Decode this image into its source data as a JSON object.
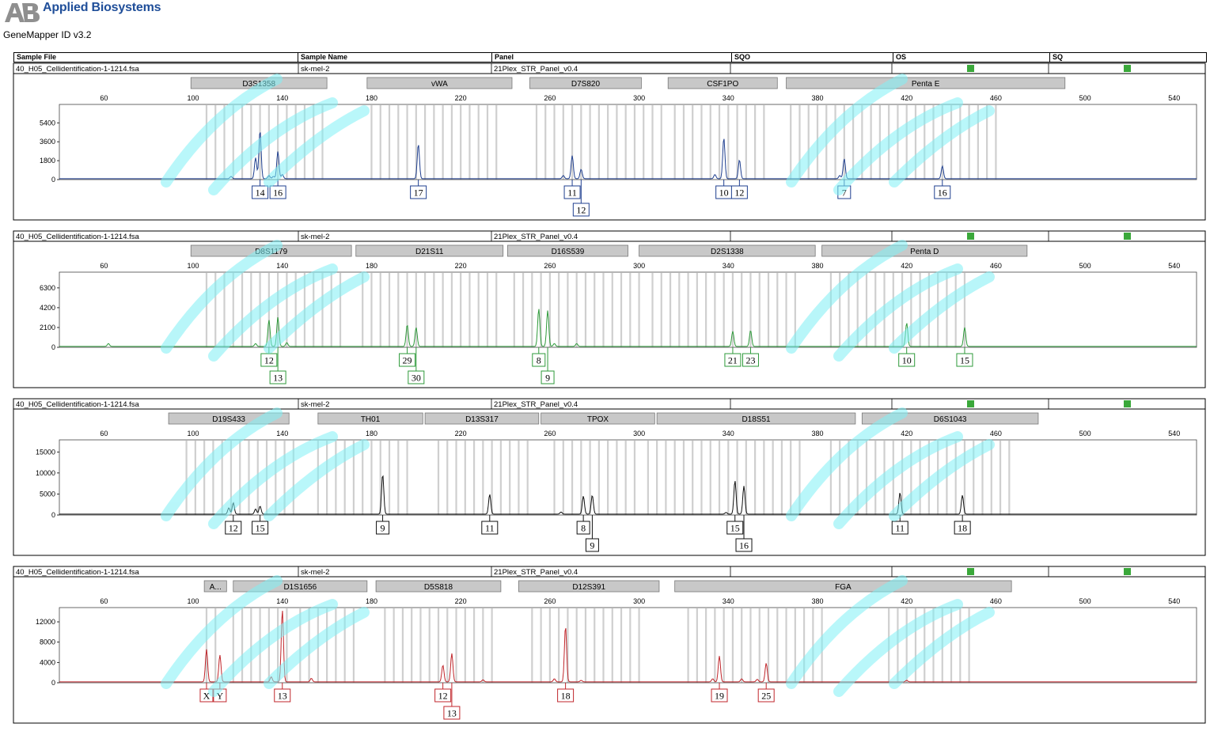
{
  "app": {
    "company": "Applied Biosystems",
    "product": "GeneMapper ID v3.2"
  },
  "table_header": {
    "columns": [
      "Sample File",
      "Sample Name",
      "Panel",
      "SQO",
      "OS",
      "SQ"
    ]
  },
  "colors": {
    "dye_blue": "#1f3f8f",
    "dye_green": "#2e9a3a",
    "dye_black": "#111111",
    "dye_red": "#c0262b",
    "status_green": "#3aa83a",
    "bin_gray": "#cfcfcf",
    "marker_fill": "#c8c8c8",
    "watermark": "#7ff0f5"
  },
  "chart_data": [
    {
      "type": "line",
      "sample_file": "40_H05_Cellidentification-1-1214.fsa",
      "sample_name": "sk-mel-2",
      "panel": "21Plex_STR_Panel_v0.4",
      "dye": "blue",
      "xlim": [
        40,
        550
      ],
      "x_ticks": [
        60,
        100,
        140,
        180,
        220,
        260,
        300,
        340,
        380,
        420,
        460,
        500,
        540
      ],
      "y_ticks": [
        0,
        1800,
        3600,
        5400
      ],
      "ylim": [
        0,
        7000
      ],
      "markers": [
        {
          "name": "D3S1358",
          "start": 99,
          "end": 160
        },
        {
          "name": "vWA",
          "start": 178,
          "end": 243
        },
        {
          "name": "D7S820",
          "start": 251,
          "end": 301
        },
        {
          "name": "CSF1PO",
          "start": 313,
          "end": 362
        },
        {
          "name": "Penta E",
          "start": 366,
          "end": 491
        }
      ],
      "bin_ranges": [
        [
          106,
          158
        ],
        [
          180,
          238
        ],
        [
          254,
          310
        ],
        [
          316,
          358
        ],
        [
          368,
          460
        ]
      ],
      "peaks": [
        {
          "x": 117,
          "y": 220
        },
        {
          "x": 128,
          "y": 2000
        },
        {
          "x": 130,
          "y": 4600
        },
        {
          "x": 134,
          "y": 300
        },
        {
          "x": 136,
          "y": 220
        },
        {
          "x": 138,
          "y": 2600
        },
        {
          "x": 140,
          "y": 400
        },
        {
          "x": 201,
          "y": 3300
        },
        {
          "x": 266,
          "y": 300
        },
        {
          "x": 270,
          "y": 2200
        },
        {
          "x": 274,
          "y": 900
        },
        {
          "x": 334,
          "y": 400
        },
        {
          "x": 338,
          "y": 3900
        },
        {
          "x": 345,
          "y": 1800
        },
        {
          "x": 390,
          "y": 300
        },
        {
          "x": 392,
          "y": 1900
        },
        {
          "x": 436,
          "y": 1200
        }
      ],
      "alleles": [
        {
          "label": "14",
          "x": 130,
          "row": 0
        },
        {
          "label": "16",
          "x": 138,
          "row": 0
        },
        {
          "label": "17",
          "x": 201,
          "row": 0
        },
        {
          "label": "11",
          "x": 270,
          "row": 0
        },
        {
          "label": "12",
          "x": 274,
          "row": 1
        },
        {
          "label": "10",
          "x": 338,
          "row": 0
        },
        {
          "label": "12",
          "x": 345,
          "row": 0
        },
        {
          "label": "7",
          "x": 392,
          "row": 0
        },
        {
          "label": "16",
          "x": 436,
          "row": 0
        }
      ]
    },
    {
      "type": "line",
      "sample_file": "40_H05_Cellidentification-1-1214.fsa",
      "sample_name": "sk-mel-2",
      "panel": "21Plex_STR_Panel_v0.4",
      "dye": "green",
      "xlim": [
        40,
        550
      ],
      "x_ticks": [
        60,
        100,
        140,
        180,
        220,
        260,
        300,
        340,
        380,
        420,
        460,
        500,
        540
      ],
      "y_ticks": [
        0,
        2100,
        4200,
        6300
      ],
      "ylim": [
        0,
        7800
      ],
      "markers": [
        {
          "name": "D8S1179",
          "start": 99,
          "end": 171
        },
        {
          "name": "D21S11",
          "start": 173,
          "end": 239
        },
        {
          "name": "D16S539",
          "start": 241,
          "end": 295
        },
        {
          "name": "D2S1338",
          "start": 300,
          "end": 379
        },
        {
          "name": "Penta D",
          "start": 382,
          "end": 474
        }
      ],
      "bin_ranges": [
        [
          106,
          168
        ],
        [
          176,
          236
        ],
        [
          244,
          300
        ],
        [
          306,
          370
        ],
        [
          386,
          448
        ]
      ],
      "peaks": [
        {
          "x": 62,
          "y": 300
        },
        {
          "x": 128,
          "y": 300
        },
        {
          "x": 134,
          "y": 2800
        },
        {
          "x": 138,
          "y": 3100
        },
        {
          "x": 142,
          "y": 400
        },
        {
          "x": 196,
          "y": 2300
        },
        {
          "x": 200,
          "y": 2000
        },
        {
          "x": 255,
          "y": 4000
        },
        {
          "x": 259,
          "y": 3800
        },
        {
          "x": 262,
          "y": 300
        },
        {
          "x": 272,
          "y": 300
        },
        {
          "x": 342,
          "y": 1600
        },
        {
          "x": 350,
          "y": 1700
        },
        {
          "x": 420,
          "y": 2500
        },
        {
          "x": 446,
          "y": 2000
        }
      ],
      "alleles": [
        {
          "label": "12",
          "x": 134,
          "row": 0
        },
        {
          "label": "13",
          "x": 138,
          "row": 1
        },
        {
          "label": "29",
          "x": 196,
          "row": 0
        },
        {
          "label": "30",
          "x": 200,
          "row": 1
        },
        {
          "label": "8",
          "x": 255,
          "row": 0
        },
        {
          "label": "9",
          "x": 259,
          "row": 1
        },
        {
          "label": "21",
          "x": 342,
          "row": 0
        },
        {
          "label": "23",
          "x": 350,
          "row": 0
        },
        {
          "label": "10",
          "x": 420,
          "row": 0
        },
        {
          "label": "15",
          "x": 446,
          "row": 0
        }
      ]
    },
    {
      "type": "line",
      "sample_file": "40_H05_Cellidentification-1-1214.fsa",
      "sample_name": "sk-mel-2",
      "panel": "21Plex_STR_Panel_v0.4",
      "dye": "black",
      "xlim": [
        40,
        550
      ],
      "x_ticks": [
        60,
        100,
        140,
        180,
        220,
        260,
        300,
        340,
        380,
        420,
        460,
        500,
        540
      ],
      "y_ticks": [
        0,
        5000,
        10000,
        15000
      ],
      "ylim": [
        0,
        17500
      ],
      "markers": [
        {
          "name": "D19S433",
          "start": 89,
          "end": 143
        },
        {
          "name": "TH01",
          "start": 156,
          "end": 203
        },
        {
          "name": "D13S317",
          "start": 204,
          "end": 255
        },
        {
          "name": "TPOX",
          "start": 256,
          "end": 307
        },
        {
          "name": "D18S51",
          "start": 308,
          "end": 397
        },
        {
          "name": "D6S1043",
          "start": 400,
          "end": 479
        }
      ],
      "bin_ranges": [
        [
          97,
          148
        ],
        [
          156,
          198
        ],
        [
          210,
          250
        ],
        [
          262,
          300
        ],
        [
          304,
          375
        ],
        [
          386,
          466
        ]
      ],
      "peaks": [
        {
          "x": 116,
          "y": 1500
        },
        {
          "x": 118,
          "y": 2700
        },
        {
          "x": 128,
          "y": 1200
        },
        {
          "x": 130,
          "y": 1900
        },
        {
          "x": 185,
          "y": 9500
        },
        {
          "x": 233,
          "y": 4700
        },
        {
          "x": 265,
          "y": 500
        },
        {
          "x": 275,
          "y": 4300
        },
        {
          "x": 279,
          "y": 4500
        },
        {
          "x": 343,
          "y": 8000
        },
        {
          "x": 347,
          "y": 6700
        },
        {
          "x": 339,
          "y": 400
        },
        {
          "x": 417,
          "y": 5100
        },
        {
          "x": 445,
          "y": 4500
        }
      ],
      "alleles": [
        {
          "label": "12",
          "x": 118,
          "row": 0
        },
        {
          "label": "15",
          "x": 130,
          "row": 0
        },
        {
          "label": "9",
          "x": 185,
          "row": 0
        },
        {
          "label": "11",
          "x": 233,
          "row": 0
        },
        {
          "label": "8",
          "x": 275,
          "row": 0
        },
        {
          "label": "9",
          "x": 279,
          "row": 1
        },
        {
          "label": "15",
          "x": 343,
          "row": 0
        },
        {
          "label": "16",
          "x": 347,
          "row": 1
        },
        {
          "label": "11",
          "x": 417,
          "row": 0
        },
        {
          "label": "18",
          "x": 445,
          "row": 0
        }
      ]
    },
    {
      "type": "line",
      "sample_file": "40_H05_Cellidentification-1-1214.fsa",
      "sample_name": "sk-mel-2",
      "panel": "21Plex_STR_Panel_v0.4",
      "dye": "red",
      "xlim": [
        40,
        550
      ],
      "x_ticks": [
        60,
        100,
        140,
        180,
        220,
        260,
        300,
        340,
        380,
        420,
        460,
        500,
        540
      ],
      "y_ticks": [
        0,
        4000,
        8000,
        12000
      ],
      "ylim": [
        0,
        14500
      ],
      "markers": [
        {
          "name": "A...",
          "start": 105,
          "end": 115
        },
        {
          "name": "D1S1656",
          "start": 118,
          "end": 178
        },
        {
          "name": "D5S818",
          "start": 182,
          "end": 238
        },
        {
          "name": "D12S391",
          "start": 246,
          "end": 309
        },
        {
          "name": "FGA",
          "start": 316,
          "end": 467
        }
      ],
      "bin_ranges": [
        [
          106,
          112
        ],
        [
          118,
          142
        ],
        [
          148,
          175
        ],
        [
          186,
          236
        ],
        [
          252,
          300
        ],
        [
          322,
          384
        ],
        [
          412,
          450
        ]
      ],
      "peaks": [
        {
          "x": 106,
          "y": 6400
        },
        {
          "x": 112,
          "y": 5300
        },
        {
          "x": 135,
          "y": 1000
        },
        {
          "x": 140,
          "y": 14200
        },
        {
          "x": 153,
          "y": 700
        },
        {
          "x": 212,
          "y": 3300
        },
        {
          "x": 216,
          "y": 5600
        },
        {
          "x": 230,
          "y": 400
        },
        {
          "x": 262,
          "y": 600
        },
        {
          "x": 267,
          "y": 11000
        },
        {
          "x": 274,
          "y": 300
        },
        {
          "x": 333,
          "y": 600
        },
        {
          "x": 336,
          "y": 5100
        },
        {
          "x": 346,
          "y": 600
        },
        {
          "x": 353,
          "y": 500
        },
        {
          "x": 357,
          "y": 3700
        },
        {
          "x": 420,
          "y": 300
        }
      ],
      "alleles": [
        {
          "label": "X",
          "x": 106,
          "row": 0
        },
        {
          "label": "Y",
          "x": 112,
          "row": 0
        },
        {
          "label": "13",
          "x": 140,
          "row": 0
        },
        {
          "label": "12",
          "x": 212,
          "row": 0
        },
        {
          "label": "13",
          "x": 216,
          "row": 1
        },
        {
          "label": "18",
          "x": 267,
          "row": 0
        },
        {
          "label": "19",
          "x": 336,
          "row": 0
        },
        {
          "label": "25",
          "x": 357,
          "row": 0
        }
      ]
    }
  ]
}
